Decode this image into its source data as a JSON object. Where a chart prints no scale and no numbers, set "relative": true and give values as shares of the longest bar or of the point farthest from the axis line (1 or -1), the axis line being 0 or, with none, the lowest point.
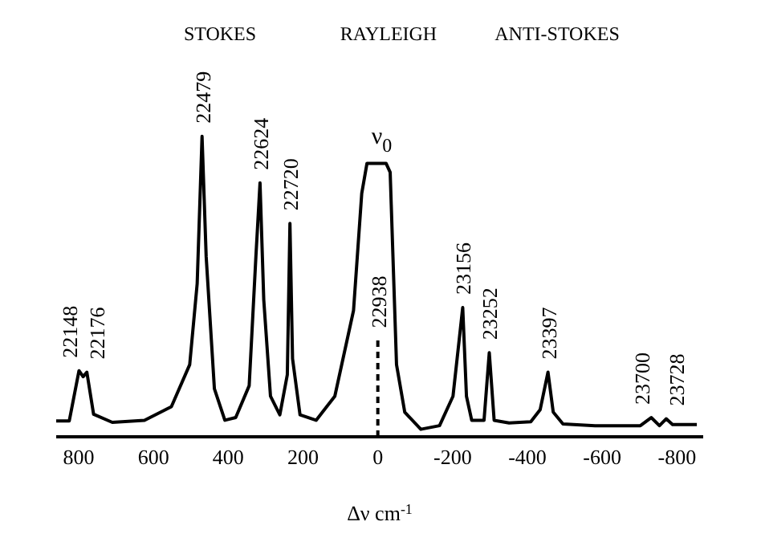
{
  "chart_data": {
    "type": "line",
    "relative": true,
    "xlabel": "Δν cm$^{-1}$",
    "xlim": [
      860,
      -870
    ],
    "xticks": [
      800,
      600,
      400,
      200,
      0,
      -200,
      -400,
      -600,
      -800
    ],
    "marker": "none",
    "line_style": "solid",
    "series": [
      {
        "color": "#000000",
        "x": [
          860,
          825,
          799,
          788,
          778,
          760,
          710,
          624,
          552,
          503,
          483,
          470,
          459,
          437,
          409,
          380,
          344,
          326,
          315,
          305,
          287,
          262,
          242,
          235,
          228,
          208,
          165,
          115,
          65,
          43,
          29,
          -22,
          -33,
          -50,
          -72,
          -115,
          -165,
          -201,
          -227,
          -237,
          -251,
          -284,
          -298,
          -311,
          -351,
          -409,
          -434,
          -455,
          -469,
          -495,
          -581,
          -702,
          -731,
          -753,
          -771,
          -788,
          -853
        ],
        "values": [
          0.053,
          0.053,
          0.22,
          0.2,
          0.215,
          0.075,
          0.048,
          0.055,
          0.1,
          0.24,
          0.51,
          1.0,
          0.6,
          0.16,
          0.055,
          0.064,
          0.17,
          0.6,
          0.845,
          0.456,
          0.135,
          0.073,
          0.207,
          0.71,
          0.26,
          0.073,
          0.055,
          0.135,
          0.42,
          0.81,
          0.91,
          0.91,
          0.88,
          0.24,
          0.082,
          0.025,
          0.037,
          0.135,
          0.43,
          0.135,
          0.055,
          0.055,
          0.28,
          0.055,
          0.046,
          0.05,
          0.09,
          0.215,
          0.082,
          0.043,
          0.037,
          0.037,
          0.064,
          0.037,
          0.06,
          0.041,
          0.041
        ]
      }
    ],
    "ref_lines": [
      {
        "axis": "x",
        "value": 0,
        "color": "#000000",
        "line_style": "dashed"
      }
    ],
    "annotations": [
      "STOKES",
      "RAYLEIGH",
      "ANTI-STOKES",
      {
        "text": "22148",
        "x": 799,
        "y": 0.22
      },
      {
        "text": "22176",
        "x": 778,
        "y": 0.215
      },
      {
        "text": "22479",
        "x": 470,
        "y": 1.0
      },
      {
        "text": "22624",
        "x": 315,
        "y": 0.845
      },
      {
        "text": "22720",
        "x": 235,
        "y": 0.71
      },
      "22938",
      {
        "text": "ν$_{0}$",
        "x": 0,
        "y": 0.91
      },
      {
        "text": "23156",
        "x": -227,
        "y": 0.43
      },
      {
        "text": "23252",
        "x": -298,
        "y": 0.28
      },
      {
        "text": "23397",
        "x": -455,
        "y": 0.215
      },
      {
        "text": "23700",
        "x": -731,
        "y": 0.064
      },
      {
        "text": "23728",
        "x": -771,
        "y": 0.06
      }
    ]
  }
}
